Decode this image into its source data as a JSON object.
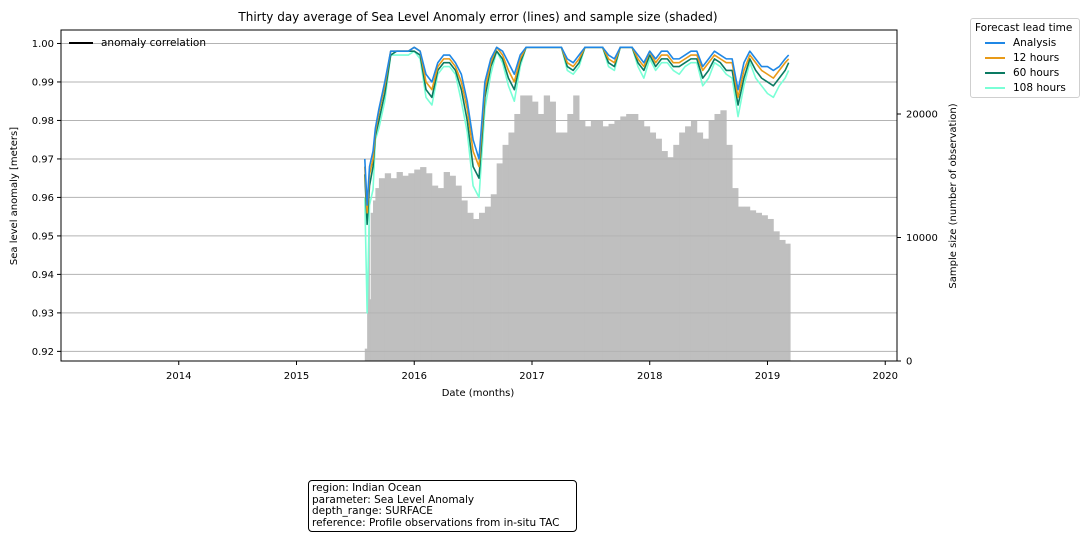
{
  "chart_data": {
    "type": "line",
    "title": "Thirty day average of Sea Level Anomaly error (lines) and sample size (shaded)",
    "xlabel": "Date (months)",
    "ylabel": "Sea level anomaly [meters]",
    "y2label": "Sample size (number of observation)",
    "x_ticks": [
      "2014",
      "2015",
      "2016",
      "2017",
      "2018",
      "2019",
      "2020"
    ],
    "xlim": [
      2013.0,
      2020.1
    ],
    "ylim": [
      0.9175,
      1.0035
    ],
    "y_ticks": [
      "0.92",
      "0.93",
      "0.94",
      "0.95",
      "0.96",
      "0.97",
      "0.98",
      "0.99",
      "1.00"
    ],
    "y2lim": [
      0,
      26800
    ],
    "y2_ticks": [
      "0",
      "10000",
      "20000"
    ],
    "grid": "horizontal",
    "inner_legend": {
      "placement": "top-left",
      "label": "anomaly correlation",
      "color": "#000000"
    },
    "legend": {
      "placement": "outside-top-right",
      "title": "Forecast lead time",
      "entries": [
        {
          "label": "Analysis",
          "color": "#1f87e5"
        },
        {
          "label": "12 hours",
          "color": "#e89a18"
        },
        {
          "label": "60 hours",
          "color": "#0a7a62"
        },
        {
          "label": "108 hours",
          "color": "#7affd6"
        }
      ]
    },
    "sample_size_color": "#bfbfbf",
    "sample_size": {
      "x": [
        2015.58,
        2015.6,
        2015.61,
        2015.62,
        2015.63,
        2015.65,
        2015.67,
        2015.7,
        2015.75,
        2015.8,
        2015.85,
        2015.9,
        2015.95,
        2016.0,
        2016.05,
        2016.1,
        2016.15,
        2016.2,
        2016.25,
        2016.3,
        2016.35,
        2016.4,
        2016.45,
        2016.5,
        2016.55,
        2016.6,
        2016.65,
        2016.7,
        2016.75,
        2016.8,
        2016.85,
        2016.9,
        2016.95,
        2017.0,
        2017.05,
        2017.1,
        2017.15,
        2017.2,
        2017.25,
        2017.3,
        2017.35,
        2017.4,
        2017.45,
        2017.5,
        2017.55,
        2017.6,
        2017.65,
        2017.7,
        2017.75,
        2017.8,
        2017.85,
        2017.9,
        2017.95,
        2018.0,
        2018.05,
        2018.1,
        2018.15,
        2018.2,
        2018.25,
        2018.3,
        2018.35,
        2018.4,
        2018.45,
        2018.5,
        2018.55,
        2018.6,
        2018.65,
        2018.7,
        2018.75,
        2018.8,
        2018.85,
        2018.9,
        2018.95,
        2019.0,
        2019.05,
        2019.1,
        2019.15,
        2019.18
      ],
      "y": [
        1000,
        6000,
        11000,
        5000,
        12000,
        13000,
        14000,
        14800,
        15200,
        14800,
        15300,
        15000,
        15200,
        15500,
        15700,
        15200,
        14200,
        14000,
        15300,
        15000,
        14200,
        13000,
        12000,
        11500,
        12000,
        12500,
        13500,
        16000,
        17500,
        18500,
        20000,
        21500,
        21500,
        21000,
        20000,
        21500,
        21000,
        18500,
        18500,
        20000,
        21500,
        19500,
        19000,
        19500,
        19500,
        19000,
        19200,
        19500,
        19800,
        20000,
        20000,
        19500,
        19000,
        18500,
        18000,
        17000,
        16500,
        17500,
        18500,
        19000,
        19500,
        18500,
        18000,
        19500,
        20000,
        20300,
        17500,
        14000,
        12500,
        12500,
        12200,
        12000,
        11800,
        11500,
        10500,
        9800,
        9500,
        9500
      ]
    },
    "x": [
      2015.58,
      2015.6,
      2015.62,
      2015.65,
      2015.67,
      2015.7,
      2015.75,
      2015.8,
      2015.85,
      2015.9,
      2015.95,
      2016.0,
      2016.05,
      2016.1,
      2016.15,
      2016.2,
      2016.25,
      2016.3,
      2016.35,
      2016.4,
      2016.45,
      2016.5,
      2016.55,
      2016.6,
      2016.65,
      2016.7,
      2016.75,
      2016.8,
      2016.85,
      2016.9,
      2016.95,
      2017.0,
      2017.05,
      2017.1,
      2017.15,
      2017.2,
      2017.25,
      2017.3,
      2017.35,
      2017.4,
      2017.45,
      2017.5,
      2017.55,
      2017.6,
      2017.65,
      2017.7,
      2017.75,
      2017.8,
      2017.85,
      2017.9,
      2017.95,
      2018.0,
      2018.05,
      2018.1,
      2018.15,
      2018.2,
      2018.25,
      2018.3,
      2018.35,
      2018.4,
      2018.45,
      2018.5,
      2018.55,
      2018.6,
      2018.65,
      2018.7,
      2018.75,
      2018.8,
      2018.85,
      2018.9,
      2018.95,
      2019.0,
      2019.05,
      2019.1,
      2019.15,
      2019.18
    ],
    "series": [
      {
        "name": "Analysis",
        "color": "#1f87e5",
        "values": [
          0.97,
          0.958,
          0.968,
          0.972,
          0.978,
          0.983,
          0.99,
          0.998,
          0.998,
          0.998,
          0.998,
          0.999,
          0.998,
          0.992,
          0.99,
          0.995,
          0.997,
          0.997,
          0.995,
          0.992,
          0.985,
          0.975,
          0.97,
          0.99,
          0.996,
          0.999,
          0.998,
          0.995,
          0.992,
          0.997,
          0.999,
          0.999,
          0.999,
          0.999,
          0.999,
          0.999,
          0.999,
          0.996,
          0.995,
          0.997,
          0.999,
          0.999,
          0.999,
          0.999,
          0.997,
          0.996,
          0.999,
          0.999,
          0.999,
          0.997,
          0.995,
          0.998,
          0.996,
          0.998,
          0.998,
          0.996,
          0.996,
          0.997,
          0.998,
          0.998,
          0.994,
          0.996,
          0.998,
          0.997,
          0.996,
          0.996,
          0.988,
          0.995,
          0.998,
          0.996,
          0.994,
          0.994,
          0.993,
          0.994,
          0.996,
          0.997
        ]
      },
      {
        "name": "12 hours",
        "color": "#e89a18",
        "values": [
          0.968,
          0.956,
          0.966,
          0.97,
          0.977,
          0.982,
          0.989,
          0.998,
          0.998,
          0.998,
          0.998,
          0.999,
          0.998,
          0.99,
          0.988,
          0.994,
          0.996,
          0.996,
          0.994,
          0.99,
          0.983,
          0.972,
          0.968,
          0.988,
          0.995,
          0.999,
          0.997,
          0.993,
          0.99,
          0.996,
          0.999,
          0.999,
          0.999,
          0.999,
          0.999,
          0.999,
          0.999,
          0.995,
          0.994,
          0.996,
          0.999,
          0.999,
          0.999,
          0.999,
          0.996,
          0.995,
          0.999,
          0.999,
          0.999,
          0.996,
          0.994,
          0.998,
          0.995,
          0.997,
          0.997,
          0.995,
          0.995,
          0.996,
          0.997,
          0.997,
          0.993,
          0.995,
          0.997,
          0.996,
          0.995,
          0.995,
          0.986,
          0.993,
          0.997,
          0.995,
          0.993,
          0.992,
          0.991,
          0.993,
          0.995,
          0.996
        ]
      },
      {
        "name": "60 hours",
        "color": "#0a7a62",
        "values": [
          0.966,
          0.953,
          0.963,
          0.968,
          0.976,
          0.98,
          0.987,
          0.997,
          0.998,
          0.998,
          0.998,
          0.998,
          0.997,
          0.988,
          0.986,
          0.993,
          0.995,
          0.995,
          0.993,
          0.988,
          0.98,
          0.968,
          0.965,
          0.986,
          0.994,
          0.998,
          0.996,
          0.991,
          0.988,
          0.995,
          0.999,
          0.999,
          0.999,
          0.999,
          0.999,
          0.999,
          0.999,
          0.994,
          0.993,
          0.995,
          0.999,
          0.999,
          0.999,
          0.999,
          0.995,
          0.994,
          0.999,
          0.999,
          0.999,
          0.995,
          0.993,
          0.997,
          0.994,
          0.996,
          0.996,
          0.994,
          0.994,
          0.995,
          0.996,
          0.996,
          0.991,
          0.993,
          0.996,
          0.995,
          0.993,
          0.993,
          0.984,
          0.991,
          0.996,
          0.993,
          0.991,
          0.99,
          0.989,
          0.991,
          0.993,
          0.995
        ]
      },
      {
        "name": "108 hours",
        "color": "#7affd6",
        "values": [
          0.96,
          0.93,
          0.958,
          0.962,
          0.975,
          0.978,
          0.985,
          0.997,
          0.997,
          0.997,
          0.997,
          0.998,
          0.996,
          0.986,
          0.984,
          0.992,
          0.994,
          0.994,
          0.992,
          0.985,
          0.977,
          0.963,
          0.96,
          0.983,
          0.992,
          0.998,
          0.995,
          0.989,
          0.985,
          0.994,
          0.999,
          0.999,
          0.999,
          0.999,
          0.999,
          0.999,
          0.999,
          0.993,
          0.992,
          0.994,
          0.999,
          0.999,
          0.999,
          0.999,
          0.994,
          0.993,
          0.999,
          0.999,
          0.999,
          0.994,
          0.991,
          0.996,
          0.993,
          0.995,
          0.995,
          0.993,
          0.992,
          0.994,
          0.995,
          0.995,
          0.989,
          0.991,
          0.995,
          0.994,
          0.992,
          0.991,
          0.981,
          0.989,
          0.995,
          0.991,
          0.989,
          0.987,
          0.986,
          0.989,
          0.991,
          0.993
        ]
      }
    ]
  },
  "info": {
    "region": "region: Indian Ocean",
    "parameter": "parameter: Sea Level Anomaly",
    "depth_range": "depth_range: SURFACE",
    "reference": "reference: Profile observations from in-situ TAC"
  }
}
